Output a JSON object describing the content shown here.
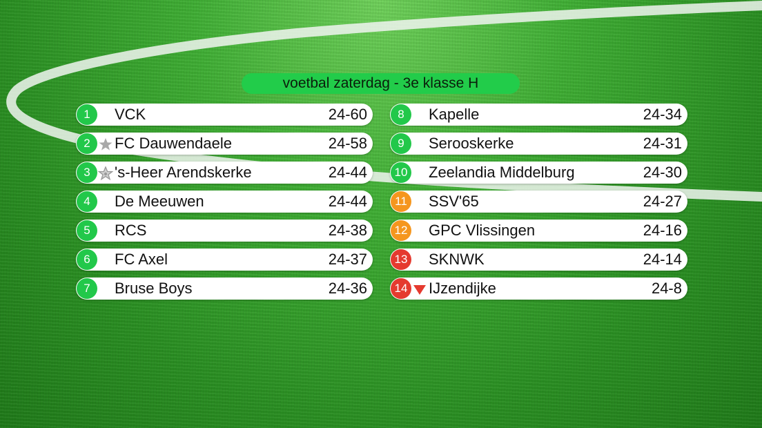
{
  "title": "voetbal zaterdag - 3e klasse H",
  "colors": {
    "green": "#22c84a",
    "orange": "#f5961e",
    "red": "#e53a2f",
    "title_pill": "#22cc4a"
  },
  "left": [
    {
      "rank": "1",
      "team": "VCK",
      "score": "24-60",
      "status": "green",
      "marker": "none"
    },
    {
      "rank": "2",
      "team": "FC Dauwendaele",
      "score": "24-58",
      "status": "green",
      "marker": "star-icon"
    },
    {
      "rank": "3",
      "team": "'s-Heer Arendskerke",
      "score": "24-44",
      "status": "green",
      "marker": "star-outline-icon"
    },
    {
      "rank": "4",
      "team": "De Meeuwen",
      "score": "24-44",
      "status": "green",
      "marker": "none"
    },
    {
      "rank": "5",
      "team": "RCS",
      "score": "24-38",
      "status": "green",
      "marker": "none"
    },
    {
      "rank": "6",
      "team": "FC Axel",
      "score": "24-37",
      "status": "green",
      "marker": "none"
    },
    {
      "rank": "7",
      "team": "Bruse Boys",
      "score": "24-36",
      "status": "green",
      "marker": "none"
    }
  ],
  "right": [
    {
      "rank": "8",
      "team": "Kapelle",
      "score": "24-34",
      "status": "green",
      "marker": "none"
    },
    {
      "rank": "9",
      "team": "Serooskerke",
      "score": "24-31",
      "status": "green",
      "marker": "none"
    },
    {
      "rank": "10",
      "team": "Zeelandia Middelburg",
      "score": "24-30",
      "status": "green",
      "marker": "none"
    },
    {
      "rank": "11",
      "team": "SSV'65",
      "score": "24-27",
      "status": "orange",
      "marker": "none"
    },
    {
      "rank": "12",
      "team": "GPC Vlissingen",
      "score": "24-16",
      "status": "orange",
      "marker": "none"
    },
    {
      "rank": "13",
      "team": "SKNWK",
      "score": "24-14",
      "status": "red",
      "marker": "none"
    },
    {
      "rank": "14",
      "team": "IJzendijke",
      "score": "24-8",
      "status": "red",
      "marker": "relegation-arrow-icon"
    }
  ]
}
